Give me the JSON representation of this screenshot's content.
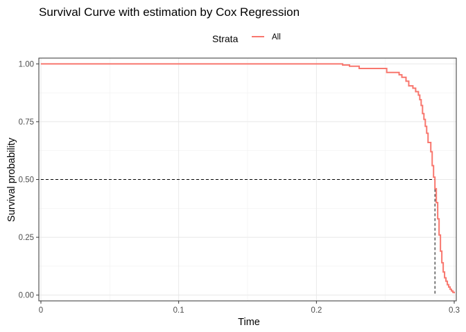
{
  "chart_data": {
    "type": "line",
    "title": "Survival Curve with estimation by Cox Regression",
    "xlabel": "Time",
    "ylabel": "Survival probability",
    "xlim": [
      -0.0015,
      0.3015
    ],
    "ylim": [
      -0.025,
      1.025
    ],
    "x_ticks": [
      0,
      0.1,
      0.2,
      0.3
    ],
    "x_tick_labels": [
      "0",
      "0.1",
      "0.2",
      "0.3"
    ],
    "y_ticks": [
      0,
      0.25,
      0.5,
      0.75,
      1
    ],
    "y_tick_labels": [
      "0.00",
      "0.25",
      "0.50",
      "0.75",
      "1.00"
    ],
    "grid": true,
    "legend": {
      "title": "Strata",
      "position": "top",
      "entries": [
        "All"
      ]
    },
    "series": [
      {
        "name": "All",
        "color": "#F8766D",
        "step": true,
        "x": [
          0,
          0.219,
          0.224,
          0.231,
          0.251,
          0.26,
          0.262,
          0.265,
          0.267,
          0.27,
          0.272,
          0.274,
          0.275,
          0.276,
          0.277,
          0.278,
          0.279,
          0.28,
          0.281,
          0.283,
          0.284,
          0.285,
          0.286,
          0.287,
          0.288,
          0.289,
          0.29,
          0.291,
          0.292,
          0.293,
          0.294,
          0.295,
          0.296,
          0.297,
          0.298,
          0.299,
          0.3
        ],
        "y": [
          1.0,
          0.995,
          0.99,
          0.98,
          0.963,
          0.953,
          0.942,
          0.925,
          0.905,
          0.895,
          0.88,
          0.865,
          0.845,
          0.82,
          0.785,
          0.76,
          0.73,
          0.7,
          0.66,
          0.62,
          0.56,
          0.51,
          0.46,
          0.4,
          0.33,
          0.26,
          0.19,
          0.14,
          0.1,
          0.075,
          0.06,
          0.045,
          0.035,
          0.025,
          0.018,
          0.012,
          0.008
        ]
      }
    ],
    "reference_lines": {
      "style": "dashed",
      "color": "#000000",
      "survival_level": 0.5,
      "median_time": 0.286
    }
  }
}
